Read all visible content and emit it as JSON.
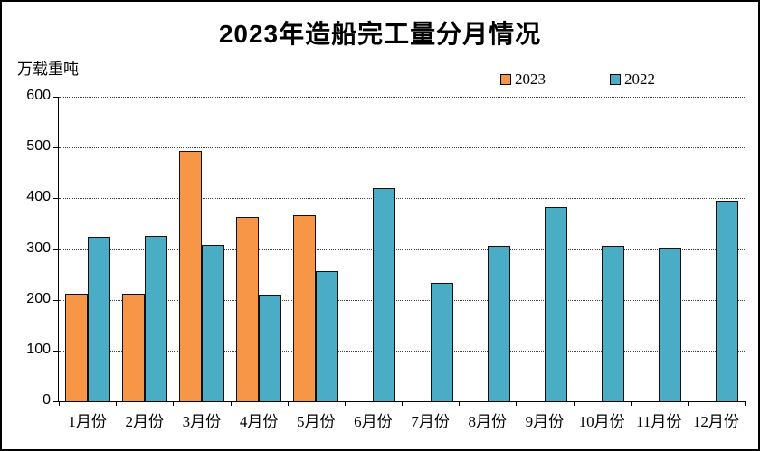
{
  "chart_data": {
    "type": "bar",
    "title": "2023年造船完工量分月情况",
    "unit_label": "万载重吨",
    "categories": [
      "1月份",
      "2月份",
      "3月份",
      "4月份",
      "5月份",
      "6月份",
      "7月份",
      "8月份",
      "9月份",
      "10月份",
      "11月份",
      "12月份"
    ],
    "series": [
      {
        "name": "2023",
        "color": "#F79646",
        "values": [
          211,
          211,
          493,
          363,
          367,
          null,
          null,
          null,
          null,
          null,
          null,
          null
        ]
      },
      {
        "name": "2022",
        "color": "#4BACC6",
        "values": [
          324,
          326,
          308,
          210,
          256,
          421,
          233,
          307,
          383,
          307,
          302,
          395
        ]
      }
    ],
    "xlabel": "",
    "ylabel": "万载重吨",
    "ylim": [
      0,
      600
    ],
    "yticks": [
      0,
      100,
      200,
      300,
      400,
      500,
      600
    ],
    "grid": "horizontal-dotted",
    "legend_position": "top-right"
  }
}
